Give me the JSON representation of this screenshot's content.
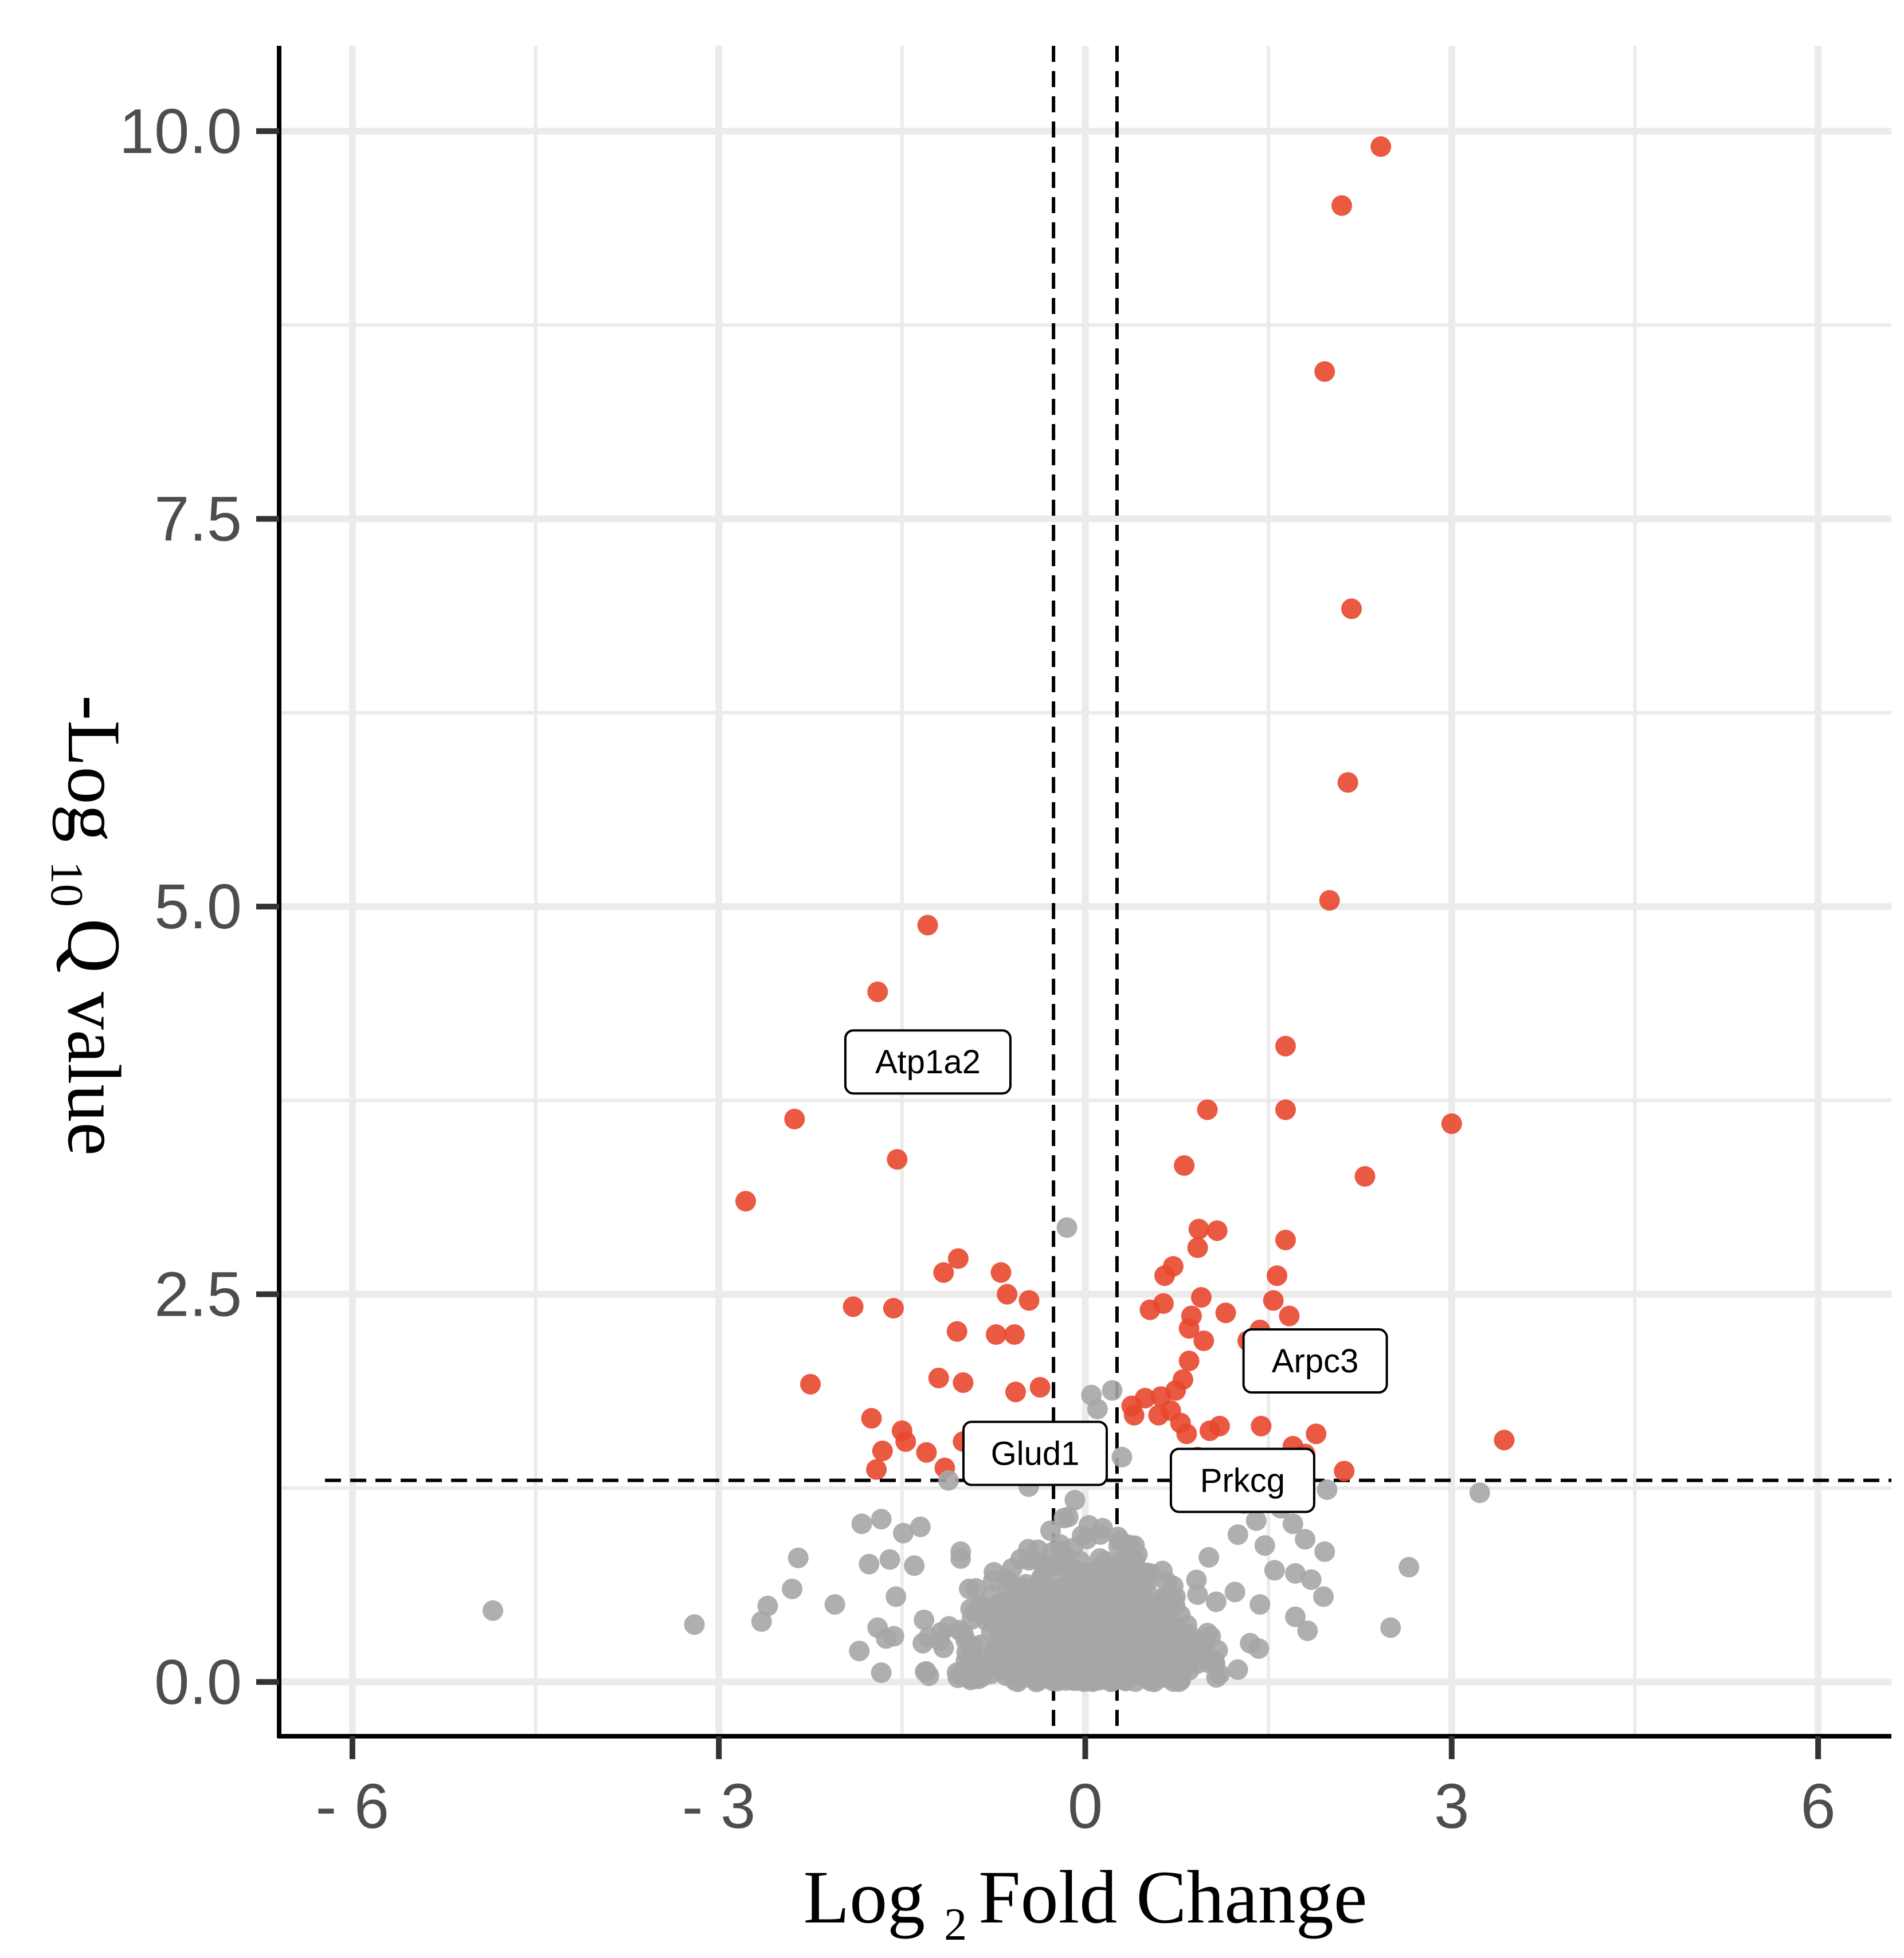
{
  "chart_data": {
    "type": "scatter",
    "title": "",
    "xlabel": {
      "prefix": "Log",
      "subscript": "2",
      "suffix": "Fold Change"
    },
    "ylabel": {
      "prefix": "-Log",
      "subscript": "10",
      "suffix": "Q value"
    },
    "xlim": [
      -6.6,
      6.6
    ],
    "ylim": [
      -0.35,
      10.55
    ],
    "x_ticks": [
      -6,
      -3,
      0,
      3,
      6
    ],
    "x_tick_labels": [
      "- 6",
      "- 3",
      "0",
      "3",
      "6"
    ],
    "y_ticks": [
      0,
      2.5,
      5,
      7.5,
      10
    ],
    "y_tick_labels": [
      "0.0",
      "2.5",
      "5.0",
      "7.5",
      "10.0"
    ],
    "grid": true,
    "thresholds": {
      "log2fc": [
        -0.26,
        0.26
      ],
      "neg_log10_q": 1.3
    },
    "colors": {
      "significant": "#E8472E",
      "not_significant": "#A6A6A6",
      "grid": "#EBEBEB",
      "axis": "#000000"
    },
    "series": [
      {
        "name": "significant",
        "points": [
          [
            2.42,
            9.9
          ],
          [
            2.1,
            9.52
          ],
          [
            1.96,
            8.45
          ],
          [
            2.18,
            6.92
          ],
          [
            2.15,
            5.8
          ],
          [
            2.0,
            5.04
          ],
          [
            1.64,
            4.1
          ],
          [
            1.64,
            3.69
          ],
          [
            1.0,
            3.69
          ],
          [
            3.0,
            3.6
          ],
          [
            0.81,
            3.33
          ],
          [
            2.29,
            3.26
          ],
          [
            -1.29,
            4.88
          ],
          [
            -1.7,
            4.45
          ],
          [
            -2.38,
            3.63
          ],
          [
            -2.78,
            3.1
          ],
          [
            -1.54,
            3.37
          ],
          [
            -1.04,
            2.73
          ],
          [
            -1.16,
            2.64
          ],
          [
            -0.69,
            2.64
          ],
          [
            -0.64,
            2.5
          ],
          [
            -0.46,
            2.46
          ],
          [
            -1.9,
            2.42
          ],
          [
            -1.57,
            2.41
          ],
          [
            -1.05,
            2.26
          ],
          [
            -0.73,
            2.24
          ],
          [
            -0.58,
            2.24
          ],
          [
            -2.25,
            1.92
          ],
          [
            -1.2,
            1.96
          ],
          [
            -1.0,
            1.93
          ],
          [
            -0.57,
            1.87
          ],
          [
            -0.37,
            1.9
          ],
          [
            -1.75,
            1.7
          ],
          [
            -1.5,
            1.62
          ],
          [
            -1.47,
            1.55
          ],
          [
            -1.66,
            1.49
          ],
          [
            -1.3,
            1.48
          ],
          [
            -1.0,
            1.55
          ],
          [
            -0.82,
            1.45
          ],
          [
            -0.6,
            1.52
          ],
          [
            -1.71,
            1.37
          ],
          [
            -1.15,
            1.38
          ],
          [
            -0.88,
            1.4
          ],
          [
            -0.45,
            1.37
          ],
          [
            0.93,
            2.92
          ],
          [
            1.08,
            2.91
          ],
          [
            0.92,
            2.8
          ],
          [
            1.64,
            2.85
          ],
          [
            0.72,
            2.68
          ],
          [
            0.65,
            2.62
          ],
          [
            1.57,
            2.62
          ],
          [
            0.95,
            2.48
          ],
          [
            0.64,
            2.44
          ],
          [
            1.54,
            2.46
          ],
          [
            0.53,
            2.4
          ],
          [
            1.15,
            2.38
          ],
          [
            0.87,
            2.36
          ],
          [
            1.67,
            2.36
          ],
          [
            0.85,
            2.28
          ],
          [
            1.43,
            2.27
          ],
          [
            1.33,
            2.2
          ],
          [
            0.97,
            2.2
          ],
          [
            0.85,
            2.07
          ],
          [
            0.8,
            1.95
          ],
          [
            0.74,
            1.88
          ],
          [
            0.62,
            1.84
          ],
          [
            0.49,
            1.83
          ],
          [
            0.38,
            1.78
          ],
          [
            0.7,
            1.75
          ],
          [
            0.6,
            1.72
          ],
          [
            0.78,
            1.67
          ],
          [
            1.1,
            1.65
          ],
          [
            1.02,
            1.62
          ],
          [
            0.83,
            1.6
          ],
          [
            1.44,
            1.65
          ],
          [
            1.89,
            1.6
          ],
          [
            0.4,
            1.72
          ],
          [
            1.7,
            1.52
          ],
          [
            1.8,
            1.47
          ],
          [
            1.72,
            1.4
          ],
          [
            2.12,
            1.36
          ],
          [
            0.92,
            1.45
          ],
          [
            1.3,
            1.37
          ],
          [
            3.43,
            1.56
          ]
        ]
      },
      {
        "name": "not_significant",
        "points": [
          [
            -0.15,
            2.93
          ],
          [
            0.05,
            1.85
          ],
          [
            0.22,
            1.88
          ],
          [
            0.1,
            1.76
          ],
          [
            -0.05,
            1.53
          ],
          [
            0.05,
            1.48
          ],
          [
            0.3,
            1.45
          ],
          [
            -4.85,
            0.46
          ],
          [
            -3.2,
            0.37
          ],
          [
            -2.6,
            0.49
          ],
          [
            -2.65,
            0.39
          ],
          [
            -2.4,
            0.6
          ],
          [
            -2.35,
            0.8
          ],
          [
            -2.05,
            0.5
          ],
          [
            -1.83,
            1.02
          ],
          [
            -1.85,
            0.2
          ],
          [
            -1.77,
            0.76
          ],
          [
            -1.6,
            0.79
          ],
          [
            -1.67,
            1.05
          ],
          [
            -1.49,
            0.96
          ],
          [
            -1.35,
            1.0
          ],
          [
            -1.4,
            0.75
          ],
          [
            -1.55,
            0.55
          ],
          [
            -1.32,
            0.4
          ],
          [
            -1.7,
            0.35
          ],
          [
            -1.63,
            0.28
          ],
          [
            -1.33,
            0.25
          ],
          [
            -1.16,
            0.22
          ],
          [
            -1.28,
            0.04
          ],
          [
            -1.67,
            0.06
          ],
          [
            -1.05,
            0.06
          ],
          [
            -1.12,
            1.3
          ],
          [
            -1.02,
            0.84
          ],
          [
            -0.95,
            0.6
          ],
          [
            3.23,
            1.22
          ],
          [
            2.65,
            0.74
          ],
          [
            2.5,
            0.35
          ],
          [
            1.95,
            0.55
          ],
          [
            1.85,
            0.66
          ],
          [
            1.96,
            0.84
          ],
          [
            1.72,
            0.7
          ],
          [
            1.82,
            0.33
          ],
          [
            1.72,
            0.42
          ],
          [
            1.8,
            0.92
          ],
          [
            1.98,
            1.24
          ],
          [
            1.6,
            1.12
          ],
          [
            1.7,
            1.02
          ],
          [
            1.47,
            0.88
          ],
          [
            1.55,
            0.72
          ],
          [
            1.43,
            0.5
          ],
          [
            1.35,
            0.25
          ],
          [
            1.25,
            0.95
          ],
          [
            1.1,
            0.05
          ],
          [
            1.4,
            1.04
          ],
          [
            1.3,
            1.15
          ]
        ]
      }
    ],
    "annotations": [
      {
        "text": "Atp1a2",
        "x": -1.57,
        "y": 3.37
      },
      {
        "text": "Glud1",
        "x": -0.88,
        "y": 1.4
      },
      {
        "text": "Arpc3",
        "x": 0.85,
        "y": 2.07
      },
      {
        "text": "Prkcg",
        "x": 0.49,
        "y": 1.3
      }
    ]
  }
}
